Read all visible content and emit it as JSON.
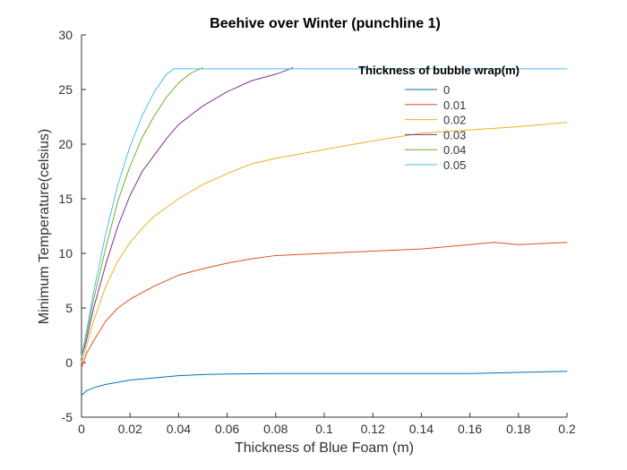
{
  "chart_data": {
    "type": "line",
    "title": "Beehive over Winter (punchline 1)",
    "xlabel": "Thickness of Blue Foam (m)",
    "ylabel": "Minimum Temperature(celsius)",
    "xlim": [
      0,
      0.2
    ],
    "ylim": [
      -5,
      30
    ],
    "xticks": [
      0,
      0.02,
      0.04,
      0.06,
      0.08,
      0.1,
      0.12,
      0.14,
      0.16,
      0.18,
      0.2
    ],
    "yticks": [
      -5,
      0,
      5,
      10,
      15,
      20,
      25,
      30
    ],
    "xtick_labels": [
      "0",
      "0.02",
      "0.04",
      "0.06",
      "0.08",
      "0.1",
      "0.12",
      "0.14",
      "0.16",
      "0.18",
      "0.2"
    ],
    "ytick_labels": [
      "-5",
      "0",
      "5",
      "10",
      "15",
      "20",
      "25",
      "30"
    ],
    "grid": false,
    "legend": {
      "title": "Thickness of bubble wrap(m)",
      "position": "top-right"
    },
    "series": [
      {
        "name": "0",
        "color": "#0072bd",
        "x": [
          0,
          0.002,
          0.005,
          0.01,
          0.015,
          0.02,
          0.03,
          0.04,
          0.05,
          0.06,
          0.08,
          0.1,
          0.12,
          0.14,
          0.16,
          0.18,
          0.2
        ],
        "y": [
          -3.0,
          -2.6,
          -2.3,
          -2.0,
          -1.8,
          -1.6,
          -1.4,
          -1.2,
          -1.1,
          -1.05,
          -1.0,
          -1.0,
          -1.0,
          -1.0,
          -1.0,
          -0.9,
          -0.8
        ]
      },
      {
        "name": "0.01",
        "color": "#d95319",
        "x": [
          0,
          0.002,
          0.005,
          0.01,
          0.015,
          0.02,
          0.03,
          0.04,
          0.05,
          0.06,
          0.07,
          0.08,
          0.1,
          0.12,
          0.14,
          0.16,
          0.17,
          0.18,
          0.19,
          0.2
        ],
        "y": [
          -0.5,
          0.8,
          2.0,
          3.8,
          5.0,
          5.8,
          7.0,
          8.0,
          8.6,
          9.1,
          9.5,
          9.8,
          10.0,
          10.2,
          10.4,
          10.8,
          11.0,
          10.8,
          10.9,
          11.0
        ]
      },
      {
        "name": "0.02",
        "color": "#edb120",
        "x": [
          0,
          0.002,
          0.005,
          0.01,
          0.015,
          0.02,
          0.025,
          0.03,
          0.04,
          0.05,
          0.06,
          0.07,
          0.08,
          0.1,
          0.12,
          0.14,
          0.16,
          0.18,
          0.2
        ],
        "y": [
          0.0,
          1.5,
          3.8,
          7.0,
          9.3,
          11.0,
          12.3,
          13.4,
          15.0,
          16.3,
          17.3,
          18.2,
          18.7,
          19.5,
          20.3,
          21.0,
          21.3,
          21.6,
          22.0
        ]
      },
      {
        "name": "0.03",
        "color": "#7e2f8e",
        "x": [
          0,
          0.002,
          0.005,
          0.01,
          0.015,
          0.02,
          0.025,
          0.03,
          0.035,
          0.04,
          0.05,
          0.06,
          0.07,
          0.08,
          0.085,
          0.087
        ],
        "y": [
          0.5,
          2.0,
          5.0,
          9.0,
          12.5,
          15.3,
          17.5,
          19.0,
          20.5,
          21.8,
          23.5,
          24.8,
          25.8,
          26.4,
          26.8,
          27.0
        ]
      },
      {
        "name": "0.04",
        "color": "#77ac30",
        "x": [
          0,
          0.002,
          0.005,
          0.01,
          0.015,
          0.02,
          0.025,
          0.03,
          0.035,
          0.04,
          0.045,
          0.05
        ],
        "y": [
          0.5,
          2.5,
          5.8,
          10.5,
          14.8,
          18.0,
          20.6,
          22.6,
          24.3,
          25.6,
          26.5,
          27.0
        ]
      },
      {
        "name": "0.05",
        "color": "#4dbeee",
        "x": [
          0,
          0.002,
          0.005,
          0.01,
          0.015,
          0.02,
          0.025,
          0.03,
          0.035,
          0.038,
          0.05,
          0.1,
          0.15,
          0.2
        ],
        "y": [
          0.5,
          2.8,
          6.5,
          11.8,
          16.3,
          19.8,
          22.6,
          24.8,
          26.4,
          26.9,
          26.9,
          26.9,
          26.9,
          26.9
        ]
      }
    ]
  }
}
